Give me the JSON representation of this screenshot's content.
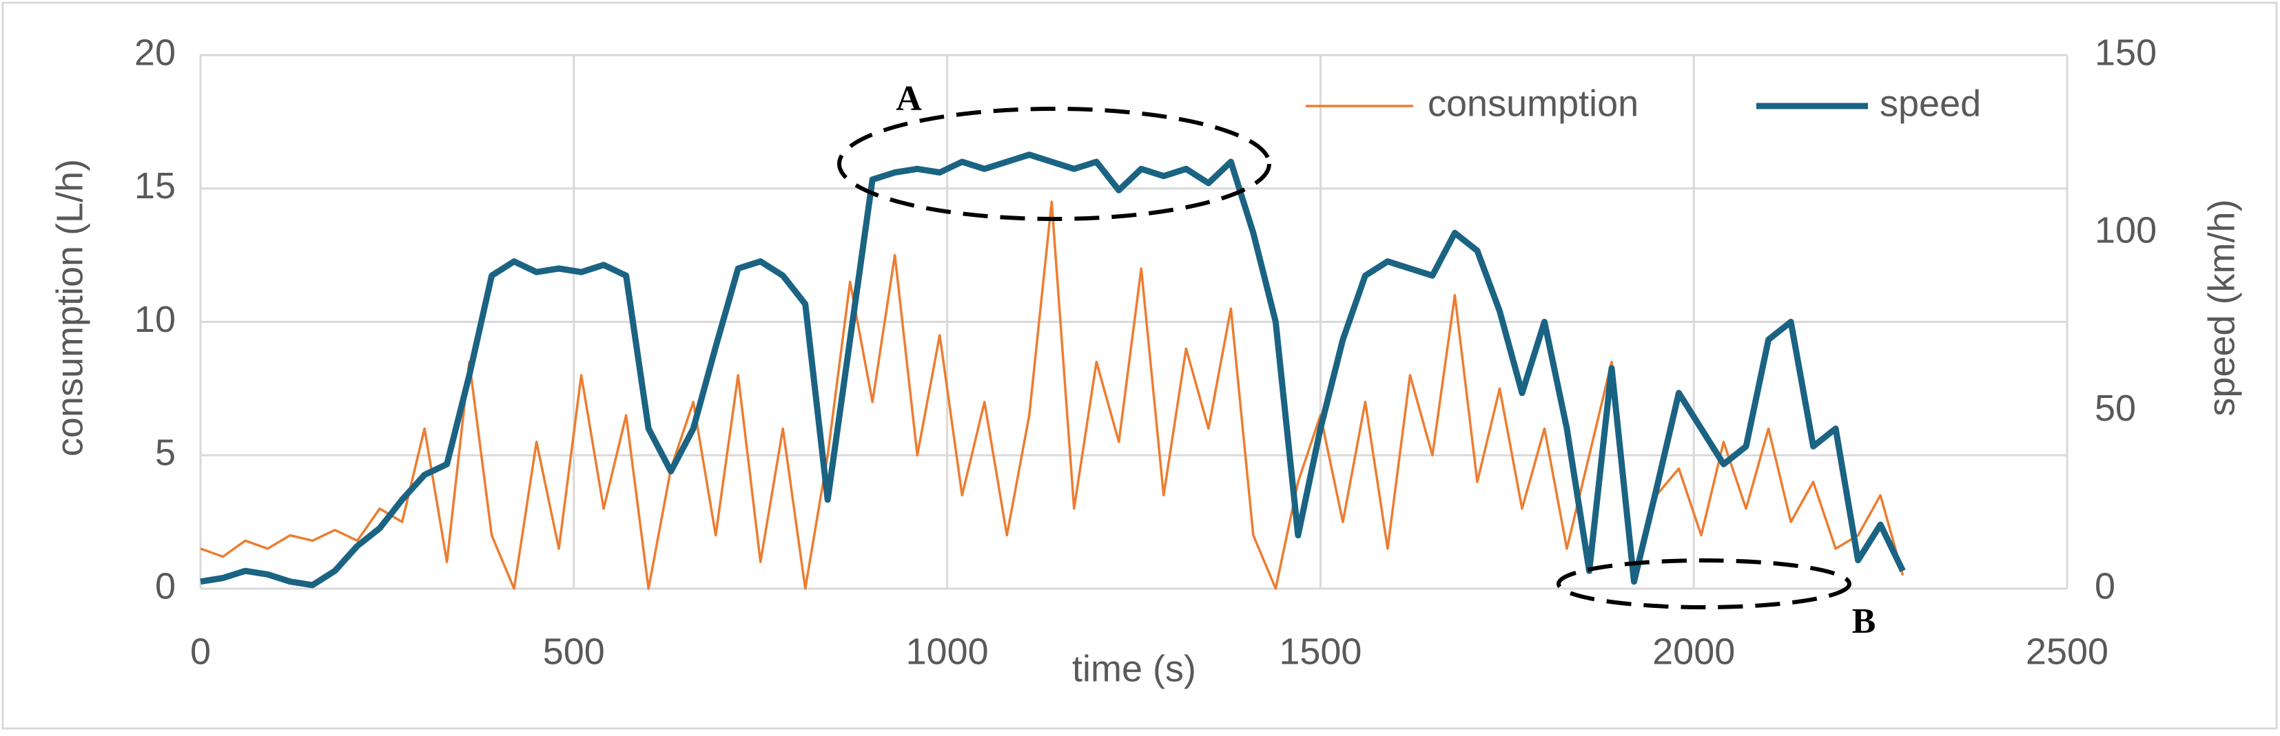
{
  "chart_data": {
    "type": "line",
    "xlabel": "time (s)",
    "ylabel": "consumption (L/h)",
    "y2label": "speed (km/h)",
    "annotations": [
      "A",
      "B"
    ],
    "x": [
      0,
      30,
      60,
      90,
      120,
      150,
      180,
      210,
      240,
      270,
      300,
      330,
      360,
      390,
      420,
      450,
      480,
      510,
      540,
      570,
      600,
      630,
      660,
      690,
      720,
      750,
      780,
      810,
      840,
      870,
      900,
      930,
      960,
      990,
      1020,
      1050,
      1080,
      1110,
      1140,
      1170,
      1200,
      1230,
      1260,
      1290,
      1320,
      1350,
      1380,
      1410,
      1440,
      1470,
      1500,
      1530,
      1560,
      1590,
      1620,
      1650,
      1680,
      1710,
      1740,
      1770,
      1800,
      1830,
      1860,
      1890,
      1920,
      1950,
      1980,
      2010,
      2040,
      2070,
      2100,
      2130,
      2160,
      2190,
      2220,
      2250,
      2280
    ],
    "series": [
      {
        "name": "consumption",
        "color": "#ed7d31",
        "values": [
          1.5,
          1.2,
          1.8,
          1.5,
          2.0,
          1.8,
          2.2,
          1.8,
          3.0,
          2.5,
          6.0,
          1.0,
          8.5,
          2.0,
          0,
          5.5,
          1.5,
          8.0,
          3.0,
          6.5,
          0,
          4.5,
          7.0,
          2.0,
          8.0,
          1.0,
          6.0,
          0,
          5.0,
          11.5,
          7.0,
          12.5,
          5.0,
          9.5,
          3.5,
          7.0,
          2.0,
          6.5,
          14.5,
          3.0,
          8.5,
          5.5,
          12.0,
          3.5,
          9.0,
          6.0,
          10.5,
          2.0,
          0,
          4.0,
          6.5,
          2.5,
          7.0,
          1.5,
          8.0,
          5.0,
          11.0,
          4.0,
          7.5,
          3.0,
          6.0,
          1.5,
          5.0,
          8.5,
          0.5,
          3.5,
          4.5,
          2.0,
          5.5,
          3.0,
          6.0,
          2.5,
          4.0,
          1.5,
          2.0,
          3.5,
          0.5
        ]
      },
      {
        "name": "speed",
        "color": "#1b6383",
        "axis": "y2",
        "values": [
          2,
          3,
          5,
          4,
          2,
          1,
          5,
          12,
          17,
          25,
          32,
          35,
          60,
          88,
          92,
          89,
          90,
          89,
          91,
          88,
          45,
          33,
          45,
          68,
          90,
          92,
          88,
          80,
          25,
          70,
          115,
          117,
          118,
          117,
          120,
          118,
          120,
          122,
          120,
          118,
          120,
          112,
          118,
          116,
          118,
          114,
          120,
          100,
          75,
          15,
          45,
          70,
          88,
          92,
          90,
          88,
          100,
          95,
          78,
          55,
          75,
          45,
          5,
          62,
          2,
          28,
          55,
          45,
          35,
          40,
          70,
          75,
          40,
          45,
          8,
          18,
          5
        ]
      }
    ],
    "xlim": [
      0,
      2500
    ],
    "xticks": [
      0,
      500,
      1000,
      1500,
      2000,
      2500
    ],
    "ylim": [
      0,
      20
    ],
    "yticks": [
      0,
      5,
      10,
      15,
      20
    ],
    "y2lim": [
      0,
      150
    ],
    "y2ticks": [
      0,
      50,
      100,
      150
    ],
    "grid": true
  }
}
